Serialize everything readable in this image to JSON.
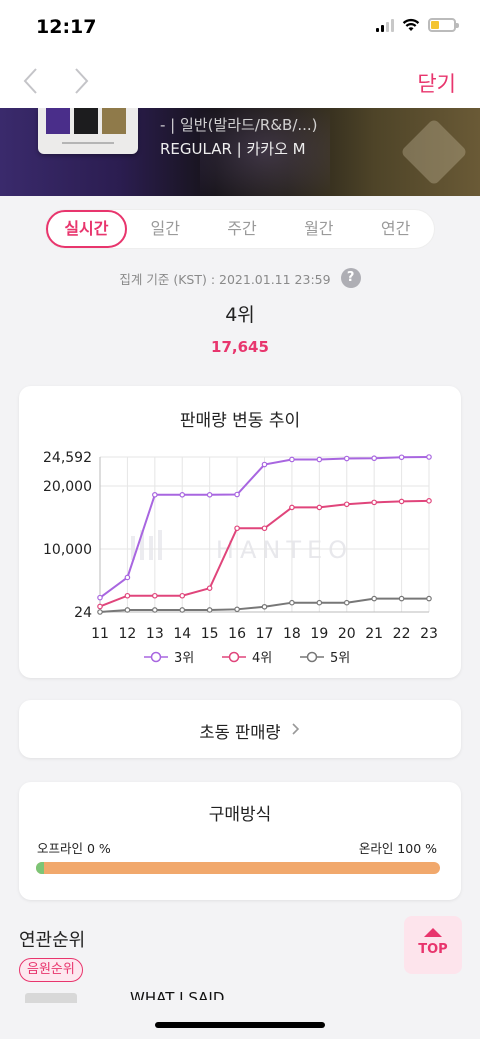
{
  "status": {
    "time": "12:17"
  },
  "nav": {
    "close_label": "닫기"
  },
  "hero": {
    "genre_line": "- | 일반(발라드/R&B/...)",
    "type_line": "REGULAR | 카카오 M"
  },
  "tabs": [
    {
      "label": "실시간",
      "active": true
    },
    {
      "label": "일간",
      "active": false
    },
    {
      "label": "주간",
      "active": false
    },
    {
      "label": "월간",
      "active": false
    },
    {
      "label": "연간",
      "active": false
    }
  ],
  "summary": {
    "basis": "집계 기준 (KST) : 2021.01.11 23:59",
    "help_icon": "?",
    "rank": "4위",
    "sales": "17,645"
  },
  "chart_data": {
    "type": "line",
    "title": "판매량 변동 추이",
    "watermark": "HANTEO",
    "x": [
      "11",
      "12",
      "13",
      "14",
      "15",
      "16",
      "17",
      "18",
      "19",
      "20",
      "21",
      "22",
      "23"
    ],
    "y_ticks": [
      24,
      10000,
      20000,
      24592
    ],
    "y_tick_labels": [
      "24",
      "10,000",
      "20,000",
      "24,592"
    ],
    "ylim": [
      24,
      24592
    ],
    "grid": true,
    "legend_position": "bottom",
    "series": [
      {
        "name": "3위",
        "color": "#a866e0",
        "values": [
          2300,
          5500,
          18600,
          18600,
          18600,
          18650,
          23400,
          24200,
          24200,
          24350,
          24400,
          24550,
          24592
        ]
      },
      {
        "name": "4위",
        "color": "#e0457b",
        "values": [
          900,
          2600,
          2600,
          2600,
          3800,
          13300,
          13300,
          16600,
          16600,
          17100,
          17400,
          17550,
          17645
        ]
      },
      {
        "name": "5위",
        "color": "#777777",
        "values": [
          24,
          350,
          350,
          350,
          350,
          450,
          850,
          1500,
          1500,
          1500,
          2150,
          2150,
          2150
        ]
      }
    ]
  },
  "first_sales": {
    "label": "초동 판매량"
  },
  "purchase": {
    "title": "구매방식",
    "offline_label": "오프라인 0 %",
    "online_label": "온라인 100 %",
    "offline_percent": 0,
    "online_percent": 100,
    "offline_color": "#7cc576",
    "online_color": "#f1a86c"
  },
  "related": {
    "title": "연관순위",
    "chip_label": "음원순위",
    "song_title": "WHAT I SAID"
  },
  "top_button": {
    "label": "TOP"
  },
  "colors": {
    "accent": "#e8356d"
  }
}
